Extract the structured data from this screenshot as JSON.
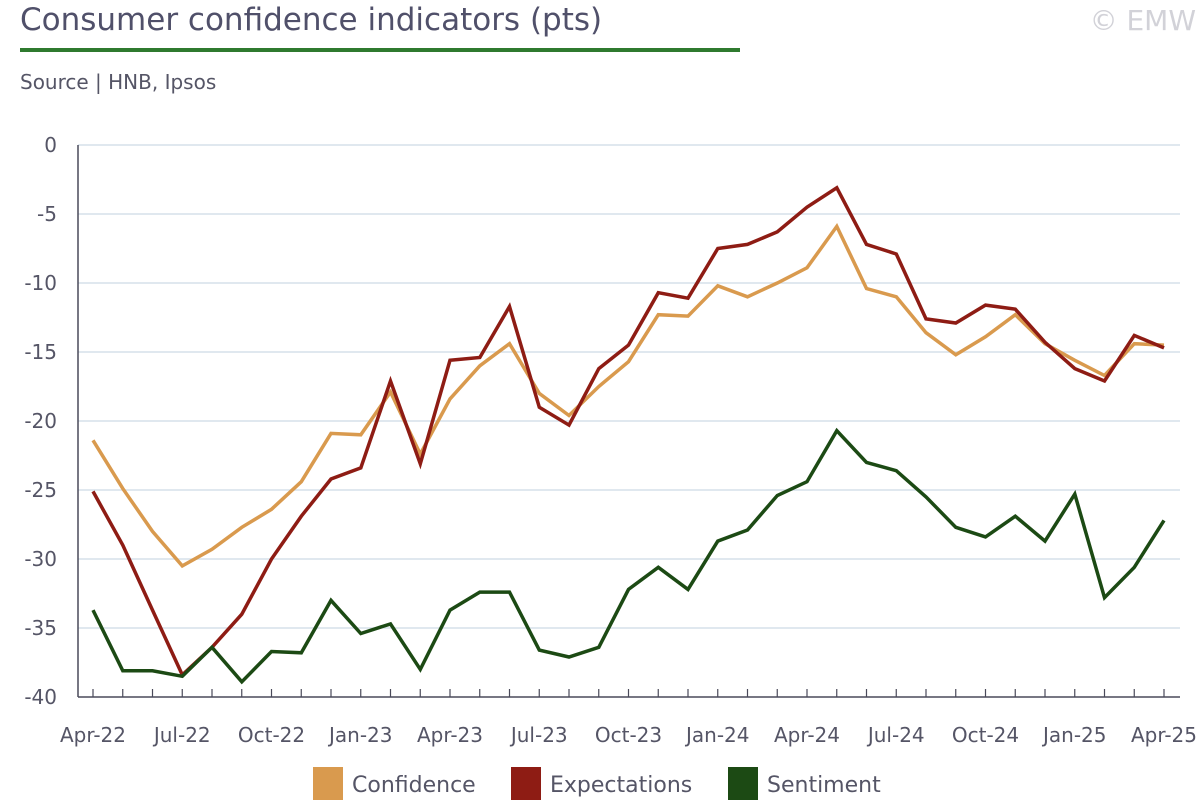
{
  "header": {
    "title": "Consumer confidence indicators (pts)",
    "source": "Source | HNB, Ipsos",
    "copyright": "© EMW"
  },
  "colors": {
    "title_rule": "#2f7a2f",
    "grid": "#d5e0ea",
    "axis": "#4a4a5a"
  },
  "chart_data": {
    "type": "line",
    "title": "Consumer confidence indicators (pts)",
    "xlabel": "",
    "ylabel": "",
    "ylim": [
      -40,
      0
    ],
    "yticks": [
      0,
      -5,
      -10,
      -15,
      -20,
      -25,
      -30,
      -35,
      -40
    ],
    "grid": true,
    "legend_position": "bottom",
    "x": [
      "Apr-22",
      "May-22",
      "Jun-22",
      "Jul-22",
      "Aug-22",
      "Sep-22",
      "Oct-22",
      "Nov-22",
      "Dec-22",
      "Jan-23",
      "Feb-23",
      "Mar-23",
      "Apr-23",
      "May-23",
      "Jun-23",
      "Jul-23",
      "Aug-23",
      "Sep-23",
      "Oct-23",
      "Nov-23",
      "Dec-23",
      "Jan-24",
      "Feb-24",
      "Mar-24",
      "Apr-24",
      "May-24",
      "Jun-24",
      "Jul-24",
      "Aug-24",
      "Sep-24",
      "Oct-24",
      "Nov-24",
      "Dec-24",
      "Jan-25",
      "Feb-25",
      "Mar-25",
      "Apr-25"
    ],
    "x_tick_labels": [
      "Apr-22",
      "Jul-22",
      "Oct-22",
      "Jan-23",
      "Apr-23",
      "Jul-23",
      "Oct-23",
      "Jan-24",
      "Apr-24",
      "Jul-24",
      "Oct-24",
      "Jan-25",
      "Apr-25"
    ],
    "series": [
      {
        "name": "Confidence",
        "color": "#d99a4e",
        "values": [
          -21.4,
          -24.9,
          -28.0,
          -30.5,
          -29.3,
          -27.7,
          -26.4,
          -24.4,
          -20.9,
          -21.0,
          -17.9,
          -22.4,
          -18.4,
          -16.0,
          -14.4,
          -18.0,
          -19.6,
          -17.5,
          -15.7,
          -12.3,
          -12.4,
          -10.2,
          -11.0,
          -10.0,
          -8.9,
          -5.9,
          -10.4,
          -11.0,
          -13.6,
          -15.2,
          -13.9,
          -12.3,
          -14.4,
          -15.6,
          -16.7,
          -14.4,
          -14.5
        ]
      },
      {
        "name": "Expectations",
        "color": "#8e1c14",
        "values": [
          -25.1,
          -29.0,
          -33.7,
          -38.4,
          -36.4,
          -34.0,
          -30.0,
          -26.9,
          -24.2,
          -23.4,
          -17.1,
          -23.1,
          -15.6,
          -15.4,
          -11.7,
          -19.0,
          -20.3,
          -16.2,
          -14.5,
          -10.7,
          -11.1,
          -7.5,
          -7.2,
          -6.3,
          -4.5,
          -3.1,
          -7.2,
          -7.9,
          -12.6,
          -12.9,
          -11.6,
          -11.9,
          -14.3,
          -16.2,
          -17.1,
          -13.8,
          -14.7
        ]
      },
      {
        "name": "Sentiment",
        "color": "#1c4a14",
        "values": [
          -33.7,
          -38.1,
          -38.1,
          -38.5,
          -36.4,
          -38.9,
          -36.7,
          -36.8,
          -33.0,
          -35.4,
          -34.7,
          -38.0,
          -33.7,
          -32.4,
          -32.4,
          -36.6,
          -37.1,
          -36.4,
          -32.2,
          -30.6,
          -32.2,
          -28.7,
          -27.9,
          -25.4,
          -24.4,
          -20.7,
          -23.0,
          -23.6,
          -25.5,
          -27.7,
          -28.4,
          -26.9,
          -28.7,
          -25.3,
          -32.8,
          -30.6,
          -27.2
        ]
      }
    ]
  }
}
